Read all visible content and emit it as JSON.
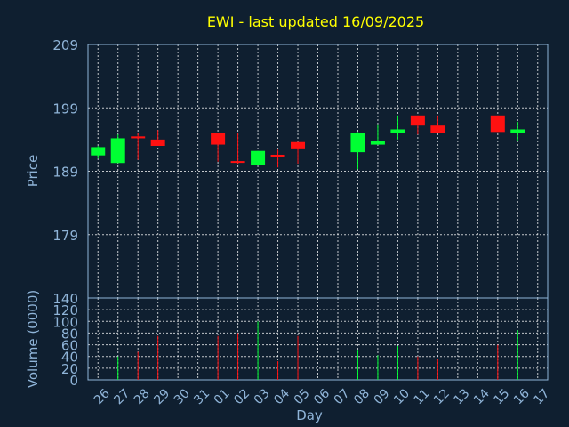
{
  "chart_data": {
    "type": "candlestick",
    "title": "EWI - last updated 16/09/2025",
    "xlabel": "Day",
    "categories": [
      "26",
      "27",
      "28",
      "29",
      "30",
      "31",
      "01",
      "02",
      "03",
      "04",
      "05",
      "06",
      "07",
      "08",
      "09",
      "10",
      "11",
      "12",
      "13",
      "14",
      "15",
      "16",
      "17"
    ],
    "price": {
      "ylabel": "Price",
      "ticks": [
        179,
        189,
        199,
        209
      ],
      "ylim": [
        169,
        209
      ],
      "candles": [
        {
          "day": "26",
          "open": 191.5,
          "high": 193.0,
          "low": 191.0,
          "close": 192.8
        },
        {
          "day": "27",
          "open": 190.3,
          "high": 194.8,
          "low": 190.3,
          "close": 194.2
        },
        {
          "day": "28",
          "open": 194.5,
          "high": 195.0,
          "low": 190.8,
          "close": 194.2
        },
        {
          "day": "29",
          "open": 194.0,
          "high": 195.5,
          "low": 193.0,
          "close": 193.0
        },
        {
          "day": "01",
          "open": 195.0,
          "high": 195.0,
          "low": 190.5,
          "close": 193.2
        },
        {
          "day": "02",
          "open": 190.6,
          "high": 195.0,
          "low": 190.2,
          "close": 190.4
        },
        {
          "day": "03",
          "open": 190.0,
          "high": 192.2,
          "low": 190.0,
          "close": 192.2
        },
        {
          "day": "04",
          "open": 191.6,
          "high": 192.4,
          "low": 189.6,
          "close": 191.2
        },
        {
          "day": "05",
          "open": 193.6,
          "high": 193.6,
          "low": 190.2,
          "close": 192.6
        },
        {
          "day": "08",
          "open": 192.0,
          "high": 195.2,
          "low": 189.3,
          "close": 195.0
        },
        {
          "day": "09",
          "open": 193.2,
          "high": 196.4,
          "low": 193.2,
          "close": 193.8
        },
        {
          "day": "10",
          "open": 195.0,
          "high": 197.8,
          "low": 194.0,
          "close": 195.6
        },
        {
          "day": "11",
          "open": 197.8,
          "high": 197.8,
          "low": 194.8,
          "close": 196.2
        },
        {
          "day": "12",
          "open": 196.2,
          "high": 197.8,
          "low": 195.0,
          "close": 195.0
        },
        {
          "day": "15",
          "open": 197.8,
          "high": 197.8,
          "low": 195.2,
          "close": 195.2
        },
        {
          "day": "16",
          "open": 195.0,
          "high": 196.8,
          "low": 193.8,
          "close": 195.6
        }
      ]
    },
    "volume": {
      "ylabel": "Volume (0000)",
      "top_label": "140",
      "ticks": [
        0,
        20,
        40,
        60,
        80,
        100,
        120
      ],
      "ylim": [
        0,
        140
      ],
      "bars": [
        {
          "day": "27",
          "value": 40,
          "direction": "up"
        },
        {
          "day": "28",
          "value": 48,
          "direction": "down"
        },
        {
          "day": "29",
          "value": 75,
          "direction": "down"
        },
        {
          "day": "01",
          "value": 75,
          "direction": "down"
        },
        {
          "day": "02",
          "value": 80,
          "direction": "down"
        },
        {
          "day": "03",
          "value": 100,
          "direction": "up"
        },
        {
          "day": "04",
          "value": 32,
          "direction": "down"
        },
        {
          "day": "05",
          "value": 75,
          "direction": "down"
        },
        {
          "day": "08",
          "value": 50,
          "direction": "up"
        },
        {
          "day": "09",
          "value": 42,
          "direction": "up"
        },
        {
          "day": "10",
          "value": 58,
          "direction": "up"
        },
        {
          "day": "11",
          "value": 40,
          "direction": "down"
        },
        {
          "day": "12",
          "value": 36,
          "direction": "down"
        },
        {
          "day": "15",
          "value": 60,
          "direction": "down"
        },
        {
          "day": "16",
          "value": 85,
          "direction": "up"
        }
      ]
    },
    "colors": {
      "up": "#00ff33",
      "down": "#ff1111",
      "background": "#0f1f30",
      "axis": "#8fb4d8",
      "title": "#ffff00"
    }
  }
}
